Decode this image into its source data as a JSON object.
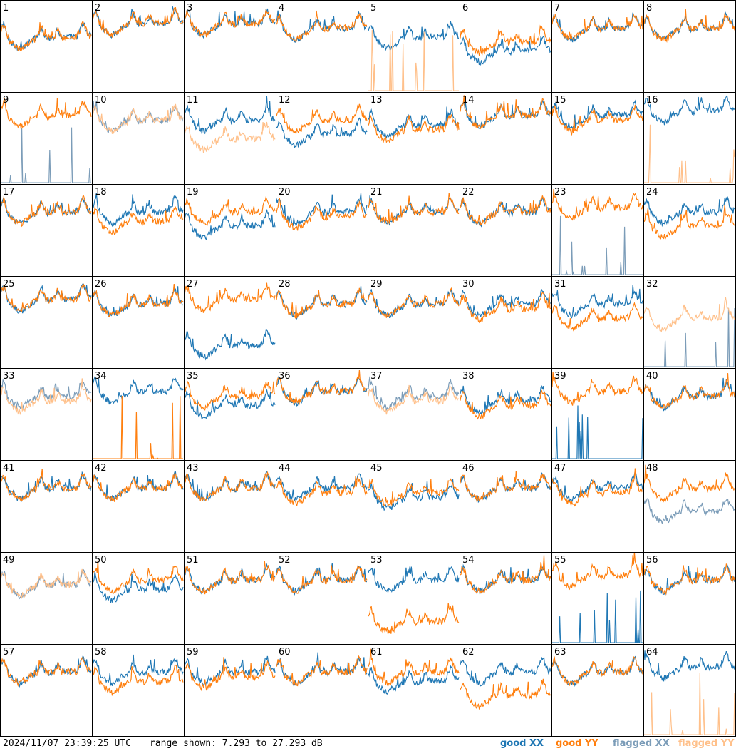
{
  "footer": {
    "timestamp": "2024/11/07 23:39:25 UTC",
    "range_text": "range shown: 7.293 to 27.293 dB"
  },
  "legend": {
    "good_xx": "good XX",
    "good_yy": "good YY",
    "flagged_xx": "flagged XX",
    "flagged_yy": "flagged YY"
  },
  "colors": {
    "good_xx": "#1f77b4",
    "good_yy": "#ff7f0e",
    "flagged_xx": "#7b9cb8",
    "flagged_yy": "#ffc08a",
    "panel_border": "#000000"
  },
  "chart_data": {
    "type": "line",
    "grid_layout": "8x8 small multiples",
    "ylim": [
      7.293,
      27.293
    ],
    "yunit": "dB",
    "panels": [
      {
        "id": "1",
        "xx": "good",
        "yy": "good",
        "xx_level": 19,
        "yy_level": 19
      },
      {
        "id": "2",
        "xx": "good",
        "yy": "good",
        "xx_level": 22,
        "yy_level": 22
      },
      {
        "id": "3",
        "xx": "good",
        "yy": "good",
        "xx_level": 22,
        "yy_level": 22
      },
      {
        "id": "4",
        "xx": "good",
        "yy": "good",
        "xx_level": 21,
        "yy_level": 21
      },
      {
        "id": "5",
        "xx": "good",
        "yy": "flagged",
        "xx_level": 19,
        "yy_level": 8
      },
      {
        "id": "6",
        "xx": "good",
        "yy": "good",
        "xx_level": 16,
        "yy_level": 18
      },
      {
        "id": "7",
        "xx": "good",
        "yy": "good",
        "xx_level": 21,
        "yy_level": 21
      },
      {
        "id": "8",
        "xx": "good",
        "yy": "good",
        "xx_level": 21,
        "yy_level": 21
      },
      {
        "id": "9",
        "xx": "flagged",
        "yy": "good",
        "xx_level": 8,
        "yy_level": 22
      },
      {
        "id": "10",
        "xx": "flagged",
        "yy": "flagged",
        "xx_level": 21,
        "yy_level": 21
      },
      {
        "id": "11",
        "xx": "good",
        "yy": "flagged",
        "xx_level": 21,
        "yy_level": 17
      },
      {
        "id": "12",
        "xx": "good",
        "yy": "good",
        "xx_level": 18,
        "yy_level": 21
      },
      {
        "id": "13",
        "xx": "good",
        "yy": "good",
        "xx_level": 20,
        "yy_level": 19
      },
      {
        "id": "14",
        "xx": "good",
        "yy": "good",
        "xx_level": 22,
        "yy_level": 22
      },
      {
        "id": "15",
        "xx": "good",
        "yy": "good",
        "xx_level": 22,
        "yy_level": 21
      },
      {
        "id": "16",
        "xx": "good",
        "yy": "flagged",
        "xx_level": 23,
        "yy_level": 8
      },
      {
        "id": "17",
        "xx": "good",
        "yy": "good",
        "xx_level": 21,
        "yy_level": 21
      },
      {
        "id": "18",
        "xx": "good",
        "yy": "good",
        "xx_level": 21,
        "yy_level": 19
      },
      {
        "id": "19",
        "xx": "good",
        "yy": "good",
        "xx_level": 18,
        "yy_level": 21
      },
      {
        "id": "20",
        "xx": "good",
        "yy": "good",
        "xx_level": 21,
        "yy_level": 20
      },
      {
        "id": "21",
        "xx": "good",
        "yy": "good",
        "xx_level": 21,
        "yy_level": 21
      },
      {
        "id": "22",
        "xx": "good",
        "yy": "good",
        "xx_level": 21,
        "yy_level": 21
      },
      {
        "id": "23",
        "xx": "flagged",
        "yy": "good",
        "xx_level": 8,
        "yy_level": 22
      },
      {
        "id": "24",
        "xx": "good",
        "yy": "good",
        "xx_level": 21,
        "yy_level": 18
      },
      {
        "id": "25",
        "xx": "good",
        "yy": "good",
        "xx_level": 22,
        "yy_level": 22
      },
      {
        "id": "26",
        "xx": "good",
        "yy": "good",
        "xx_level": 21,
        "yy_level": 21
      },
      {
        "id": "27",
        "xx": "good",
        "yy": "good",
        "xx_level": 12,
        "yy_level": 22
      },
      {
        "id": "28",
        "xx": "good",
        "yy": "good",
        "xx_level": 21,
        "yy_level": 21
      },
      {
        "id": "29",
        "xx": "good",
        "yy": "good",
        "xx_level": 21,
        "yy_level": 21
      },
      {
        "id": "30",
        "xx": "good",
        "yy": "good",
        "xx_level": 21,
        "yy_level": 20
      },
      {
        "id": "31",
        "xx": "good",
        "yy": "good",
        "xx_level": 21,
        "yy_level": 18
      },
      {
        "id": "32",
        "xx": "flagged",
        "yy": "flagged",
        "xx_level": 8,
        "yy_level": 18
      },
      {
        "id": "33",
        "xx": "flagged",
        "yy": "flagged",
        "xx_level": 21,
        "yy_level": 20
      },
      {
        "id": "34",
        "xx": "good",
        "yy": "good",
        "xx_level": 22,
        "yy_level": 8
      },
      {
        "id": "35",
        "xx": "good",
        "yy": "good",
        "xx_level": 19,
        "yy_level": 21
      },
      {
        "id": "36",
        "xx": "good",
        "yy": "good",
        "xx_level": 22,
        "yy_level": 22
      },
      {
        "id": "37",
        "xx": "flagged",
        "yy": "flagged",
        "xx_level": 21,
        "yy_level": 20
      },
      {
        "id": "38",
        "xx": "good",
        "yy": "good",
        "xx_level": 20,
        "yy_level": 19
      },
      {
        "id": "39",
        "xx": "good",
        "yy": "good",
        "xx_level": 8,
        "yy_level": 22
      },
      {
        "id": "40",
        "xx": "good",
        "yy": "good",
        "xx_level": 21,
        "yy_level": 21
      },
      {
        "id": "41",
        "xx": "good",
        "yy": "good",
        "xx_level": 21,
        "yy_level": 21
      },
      {
        "id": "42",
        "xx": "good",
        "yy": "good",
        "xx_level": 21,
        "yy_level": 21
      },
      {
        "id": "43",
        "xx": "good",
        "yy": "good",
        "xx_level": 21,
        "yy_level": 21
      },
      {
        "id": "44",
        "xx": "good",
        "yy": "good",
        "xx_level": 21,
        "yy_level": 20
      },
      {
        "id": "45",
        "xx": "good",
        "yy": "good",
        "xx_level": 19,
        "yy_level": 20
      },
      {
        "id": "46",
        "xx": "good",
        "yy": "good",
        "xx_level": 21,
        "yy_level": 21
      },
      {
        "id": "47",
        "xx": "good",
        "yy": "good",
        "xx_level": 21,
        "yy_level": 20
      },
      {
        "id": "48",
        "xx": "flagged",
        "yy": "good",
        "xx_level": 16,
        "yy_level": 21
      },
      {
        "id": "49",
        "xx": "flagged",
        "yy": "flagged",
        "xx_level": 20,
        "yy_level": 20
      },
      {
        "id": "50",
        "xx": "good",
        "yy": "good",
        "xx_level": 19,
        "yy_level": 21
      },
      {
        "id": "51",
        "xx": "good",
        "yy": "good",
        "xx_level": 21,
        "yy_level": 21
      },
      {
        "id": "52",
        "xx": "good",
        "yy": "good",
        "xx_level": 21,
        "yy_level": 21
      },
      {
        "id": "53",
        "xx": "good",
        "yy": "good",
        "xx_level": 21,
        "yy_level": 12
      },
      {
        "id": "54",
        "xx": "good",
        "yy": "good",
        "xx_level": 21,
        "yy_level": 21
      },
      {
        "id": "55",
        "xx": "good",
        "yy": "good",
        "xx_level": 8,
        "yy_level": 22
      },
      {
        "id": "56",
        "xx": "good",
        "yy": "good",
        "xx_level": 21,
        "yy_level": 21
      },
      {
        "id": "57",
        "xx": "good",
        "yy": "good",
        "xx_level": 21,
        "yy_level": 21
      },
      {
        "id": "58",
        "xx": "good",
        "yy": "good",
        "xx_level": 21,
        "yy_level": 19
      },
      {
        "id": "59",
        "xx": "good",
        "yy": "good",
        "xx_level": 21,
        "yy_level": 20
      },
      {
        "id": "60",
        "xx": "good",
        "yy": "good",
        "xx_level": 21,
        "yy_level": 21
      },
      {
        "id": "61",
        "xx": "good",
        "yy": "good",
        "xx_level": 19,
        "yy_level": 21
      },
      {
        "id": "62",
        "xx": "good",
        "yy": "good",
        "xx_level": 21,
        "yy_level": 16
      },
      {
        "id": "63",
        "xx": "good",
        "yy": "good",
        "xx_level": 21,
        "yy_level": 21
      },
      {
        "id": "64",
        "xx": "good",
        "yy": "flagged",
        "xx_level": 22,
        "yy_level": 8
      }
    ]
  }
}
